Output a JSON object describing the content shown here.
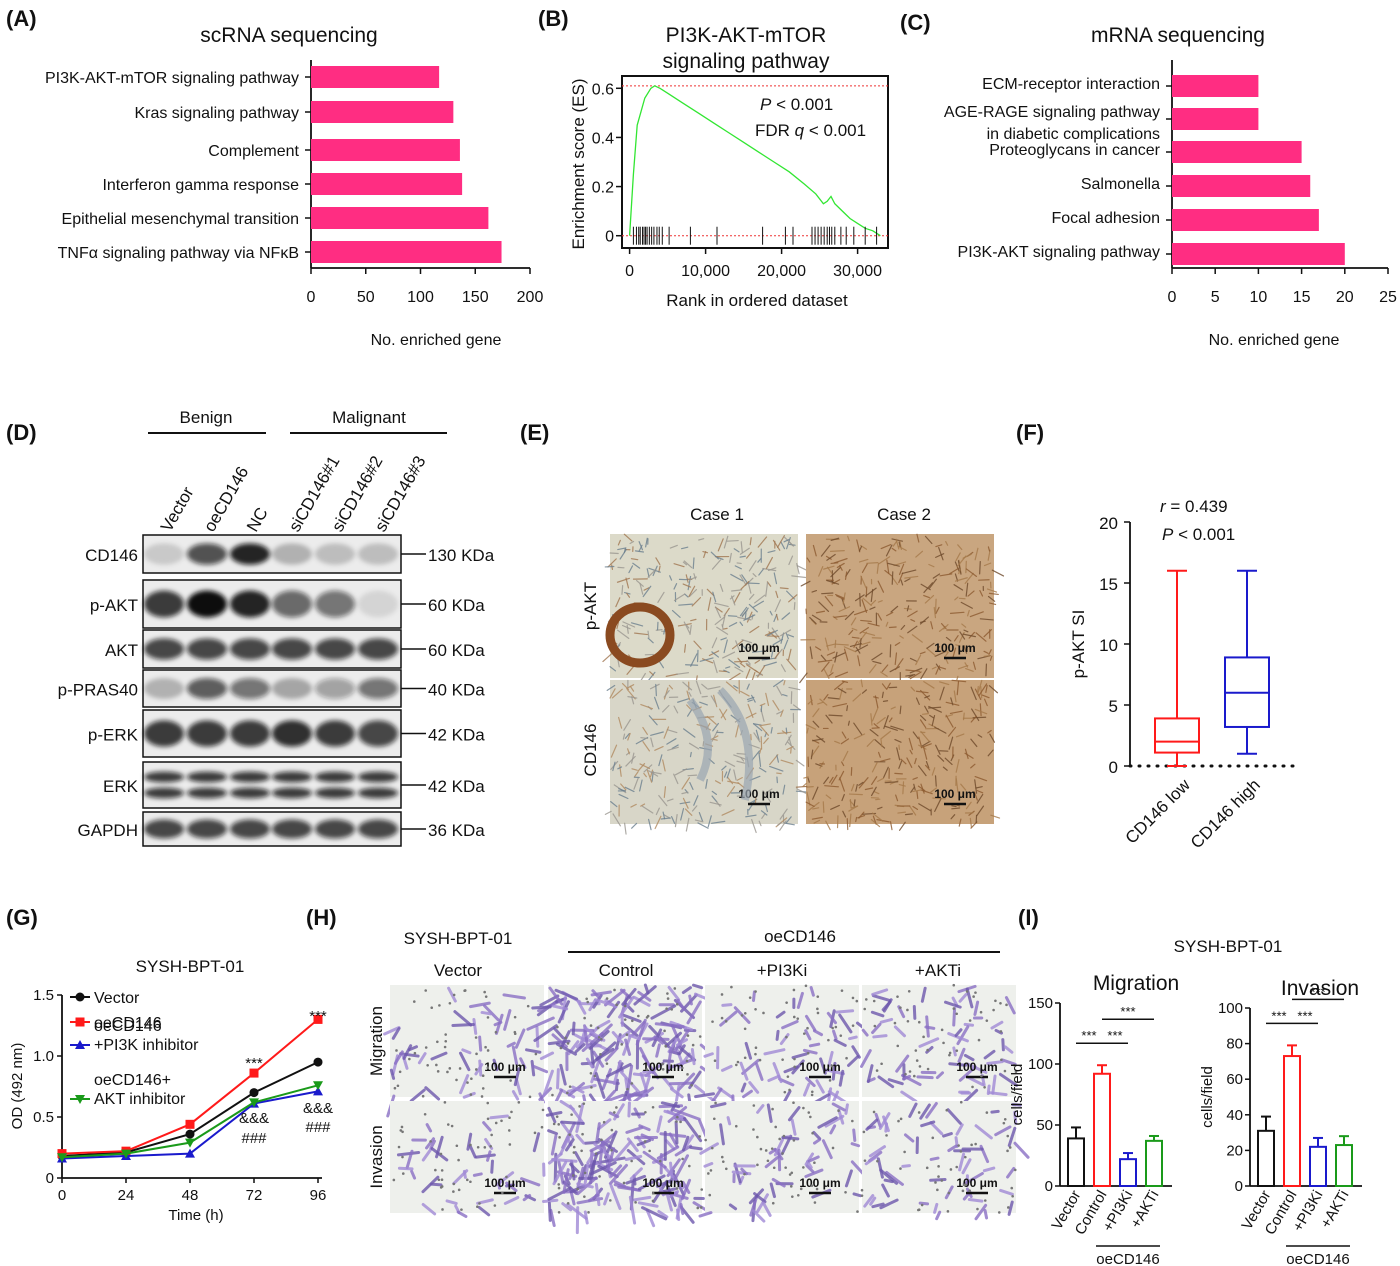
{
  "colors": {
    "bar_pink": "#ff2d82",
    "gsea_green": "#32e632",
    "red": "#ff1a1a",
    "blue": "#1a1acc",
    "green": "#1a9a1a",
    "black": "#111111"
  },
  "panels": {
    "A": "(A)",
    "B": "(B)",
    "C": "(C)",
    "D": "(D)",
    "E": "(E)",
    "F": "(F)",
    "G": "(G)",
    "H": "(H)",
    "I": "(I)"
  },
  "chart_data": [
    {
      "id": "A",
      "type": "bar",
      "orientation": "horizontal",
      "title": "scRNA sequencing",
      "categories": [
        "PI3K-AKT-mTOR signaling pathway",
        "Kras signaling pathway",
        "Complement",
        "Interferon gamma response",
        "Epithelial mesenchymal transition",
        "TNFα signaling pathway via NFκB"
      ],
      "values": [
        117,
        130,
        136,
        138,
        162,
        174
      ],
      "xlabel": "No. enriched gene",
      "xticks": [
        "0",
        "50",
        "100",
        "150",
        "200"
      ],
      "xlim": [
        0,
        200
      ]
    },
    {
      "id": "B",
      "type": "line",
      "title": [
        "PI3K-AKT-mTOR",
        "signaling pathway"
      ],
      "xlabel": "Rank in ordered dataset",
      "ylabel": "Enrichment score (ES)",
      "xticks": [
        "0",
        "10,000",
        "20,000",
        "30,000"
      ],
      "yticks": [
        "0",
        "0.2",
        "0.4",
        "0.6"
      ],
      "xlim": [
        -1000,
        34000
      ],
      "ylim": [
        -0.05,
        0.65
      ],
      "annotation_p": "P",
      "annotation_p_rest": " < 0.001",
      "annotation_fdr": "FDR ",
      "annotation_q": "q",
      "annotation_fdr_rest": " < 0.001",
      "x": [
        0,
        500,
        1000,
        2000,
        2800,
        3300,
        4000,
        5000,
        7000,
        9000,
        11000,
        13000,
        15000,
        17000,
        19000,
        21000,
        23000,
        24500,
        25500,
        26000,
        26500,
        27000,
        28000,
        29000,
        30000,
        31000,
        32000,
        33000
      ],
      "y": [
        0,
        0.25,
        0.45,
        0.56,
        0.6,
        0.61,
        0.6,
        0.58,
        0.54,
        0.5,
        0.46,
        0.42,
        0.38,
        0.34,
        0.3,
        0.26,
        0.21,
        0.17,
        0.13,
        0.14,
        0.16,
        0.13,
        0.1,
        0.07,
        0.05,
        0.03,
        0.02,
        0.0
      ],
      "max_es": 0.61,
      "hits": [
        500,
        900,
        1200,
        1400,
        1700,
        1900,
        2100,
        2300,
        2600,
        2900,
        3200,
        3600,
        3900,
        4300,
        5200,
        8000,
        11500,
        17500,
        20500,
        21500,
        24000,
        24400,
        24800,
        25200,
        25600,
        26000,
        26300,
        26600,
        27000,
        27800,
        28500,
        29500,
        31000,
        32500
      ]
    },
    {
      "id": "C",
      "type": "bar",
      "orientation": "horizontal",
      "title": "mRNA sequencing",
      "categories": [
        [
          "ECM-receptor interaction"
        ],
        [
          "AGE-RAGE signaling pathway",
          "in diabetic complications"
        ],
        [
          "Proteoglycans in cancer"
        ],
        [
          "Salmonella"
        ],
        [
          "Focal adhesion"
        ],
        [
          "PI3K-AKT signaling pathway"
        ]
      ],
      "values": [
        10,
        10,
        15,
        16,
        17,
        20
      ],
      "xlabel": "No. enriched gene",
      "xticks": [
        "0",
        "5",
        "10",
        "15",
        "20",
        "25"
      ],
      "xlim": [
        0,
        25
      ]
    },
    {
      "id": "F",
      "type": "box",
      "ylabel": "p-AKT SI",
      "categories": [
        "CD146 low",
        "CD146 high"
      ],
      "yticks": [
        "0",
        "5",
        "10",
        "15",
        "20"
      ],
      "ylim": [
        0,
        20
      ],
      "boxes": [
        {
          "name": "CD146 low",
          "min": 0,
          "q1": 1.1,
          "median": 2.0,
          "q3": 3.9,
          "max": 16,
          "color": "#ff1a1a"
        },
        {
          "name": "CD146 high",
          "min": 1.0,
          "q1": 3.2,
          "median": 6.0,
          "q3": 8.9,
          "max": 16,
          "color": "#1a1acc"
        }
      ],
      "annotation_r": "r",
      "annotation_r_rest": " = 0.439",
      "annotation_p": "P",
      "annotation_p_rest": " < 0.001"
    },
    {
      "id": "G",
      "type": "line",
      "title": "SYSH-BPT-01",
      "xlabel": "Time (h)",
      "ylabel": "OD (492 nm)",
      "x": [
        0,
        24,
        48,
        72,
        96
      ],
      "xticks": [
        "0",
        "24",
        "48",
        "72",
        "96"
      ],
      "yticks": [
        "0",
        "0.5",
        "1.0",
        "1.5"
      ],
      "ylim": [
        0,
        1.5
      ],
      "series": [
        {
          "name": "Vector",
          "values": [
            0.18,
            0.21,
            0.36,
            0.7,
            0.95
          ],
          "color": "#111111",
          "marker": "circle"
        },
        {
          "name": "oeCD146",
          "values": [
            0.2,
            0.22,
            0.44,
            0.86,
            1.3
          ],
          "color": "#ff1a1a",
          "marker": "square"
        },
        {
          "name": [
            "oeCD146",
            "+PI3K inhibitor"
          ],
          "values": [
            0.16,
            0.18,
            0.2,
            0.61,
            0.71
          ],
          "color": "#1a1acc",
          "marker": "triangle"
        },
        {
          "name": [
            "oeCD146+",
            "AKT inhibitor"
          ],
          "values": [
            0.17,
            0.2,
            0.29,
            0.62,
            0.76
          ],
          "color": "#1a9a1a",
          "marker": "triangle-down"
        }
      ],
      "sig_72": [
        "***",
        "&&&",
        "###"
      ],
      "sig_96": [
        "***",
        "&&&",
        "###"
      ]
    },
    {
      "id": "I-migration",
      "type": "bar",
      "title": "Migration",
      "ylabel": "cells/field",
      "categories": [
        "Vector",
        "Control",
        "+PI3Ki",
        "+AKTi"
      ],
      "values": [
        39,
        92,
        22,
        37
      ],
      "errors": [
        9,
        7,
        5,
        4
      ],
      "colors": [
        "#111111",
        "#ff1a1a",
        "#1a1acc",
        "#1a9a1a"
      ],
      "yticks": [
        "0",
        "50",
        "100",
        "150"
      ],
      "ylim": [
        0,
        150
      ],
      "sig": [
        "***",
        "***",
        "***"
      ]
    },
    {
      "id": "I-invasion",
      "type": "bar",
      "title": "Invasion",
      "ylabel": "cells/field",
      "categories": [
        "Vector",
        "Control",
        "+PI3Ki",
        "+AKTi"
      ],
      "values": [
        31,
        73,
        22,
        23
      ],
      "errors": [
        8,
        6,
        5,
        5
      ],
      "colors": [
        "#111111",
        "#ff1a1a",
        "#1a1acc",
        "#1a9a1a"
      ],
      "yticks": [
        "0",
        "20",
        "40",
        "60",
        "80",
        "100"
      ],
      "ylim": [
        0,
        100
      ],
      "sig": [
        "***",
        "***",
        "***"
      ]
    }
  ],
  "blot": {
    "groups": [
      "Benign",
      "Malignant"
    ],
    "lanes": [
      "Vector",
      "oeCD146",
      "NC",
      "siCD146#1",
      "siCD146#2",
      "siCD146#3"
    ],
    "rows": [
      {
        "label": "CD146",
        "size": "130 KDa",
        "intensity": [
          0.15,
          0.7,
          0.9,
          0.25,
          0.2,
          0.2
        ]
      },
      {
        "label": "p-AKT",
        "size": "60 KDa",
        "intensity": [
          0.8,
          1.0,
          0.9,
          0.6,
          0.55,
          0.1
        ]
      },
      {
        "label": "AKT",
        "size": "60 KDa",
        "intensity": [
          0.75,
          0.75,
          0.75,
          0.75,
          0.75,
          0.75
        ]
      },
      {
        "label": "p-PRAS40",
        "size": "40 KDa",
        "intensity": [
          0.25,
          0.65,
          0.55,
          0.3,
          0.35,
          0.55
        ]
      },
      {
        "label": "p-ERK",
        "size": "42 KDa",
        "intensity": [
          0.8,
          0.8,
          0.8,
          0.85,
          0.8,
          0.75
        ]
      },
      {
        "label": "ERK",
        "size": "42 KDa",
        "intensity": [
          0.8,
          0.8,
          0.8,
          0.8,
          0.8,
          0.8
        ]
      },
      {
        "label": "GAPDH",
        "size": "36 KDa",
        "intensity": [
          0.75,
          0.75,
          0.75,
          0.75,
          0.75,
          0.75
        ]
      }
    ]
  },
  "ihc": {
    "columns": [
      "Case 1",
      "Case 2"
    ],
    "rows": [
      "p-AKT",
      "CD146"
    ],
    "scale": "100 μm"
  },
  "transwell": {
    "cell_line": "SYSH-BPT-01",
    "group": "oeCD146",
    "columns": [
      "Vector",
      "Control",
      "+PI3Ki",
      "+AKTi"
    ],
    "rows": [
      "Migration",
      "Invasion"
    ],
    "scale": "100 μm"
  },
  "panel_i": {
    "cell_line": "SYSH-BPT-01",
    "group": "oeCD146"
  }
}
